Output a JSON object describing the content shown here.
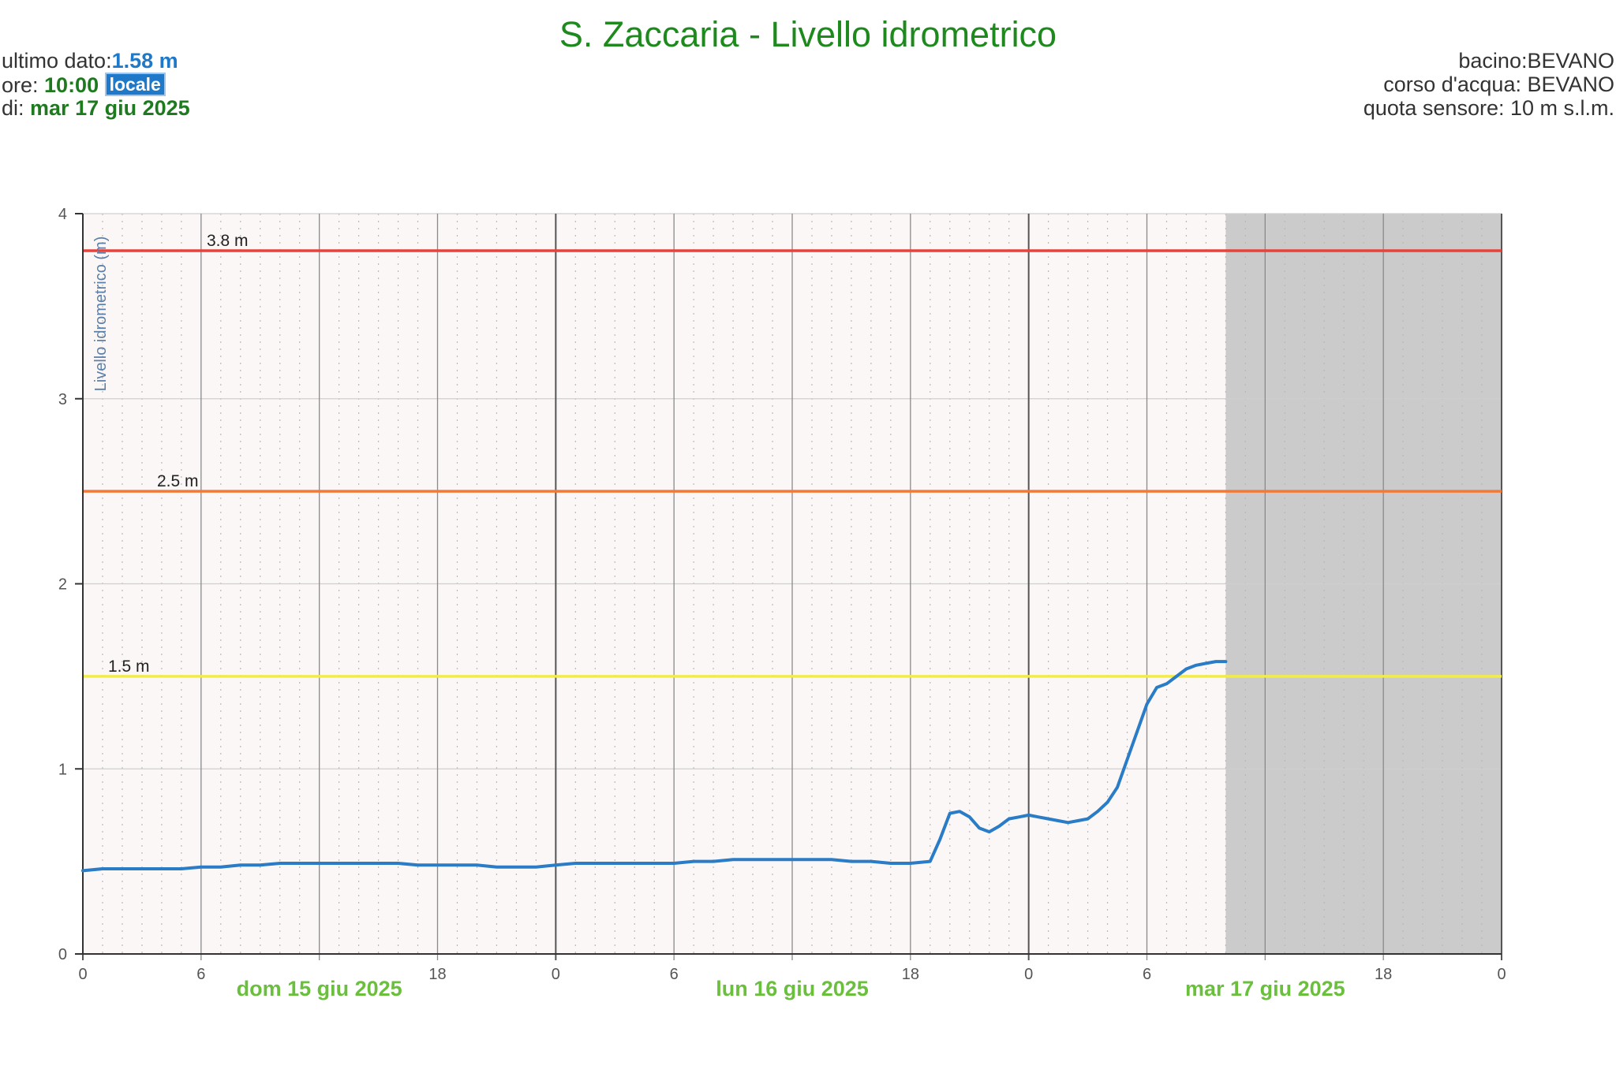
{
  "title": "S. Zaccaria - Livello idrometrico",
  "info": {
    "last_label": "ultimo dato:",
    "last_value": "1.58 m",
    "time_label": "ore: ",
    "time_value": "10:00",
    "time_badge": "locale",
    "date_label": "di: ",
    "date_value": "mar 17 giu 2025",
    "basin": "bacino:BEVANO",
    "river": "corso d'acqua: BEVANO",
    "sensor": "quota sensore: 10 m s.l.m."
  },
  "chart_data": {
    "type": "line",
    "ylabel": "Livello idrometrico (m)",
    "ylim": [
      0,
      4
    ],
    "yticks": [
      "0",
      "1",
      "2",
      "3",
      "4"
    ],
    "x_unit": "hours since 2025-06-15 00:00",
    "xlim": [
      0,
      72
    ],
    "xticks": [
      {
        "x": 0,
        "label": "0"
      },
      {
        "x": 6,
        "label": "6"
      },
      {
        "x": 12,
        "label": ""
      },
      {
        "x": 18,
        "label": "18"
      },
      {
        "x": 24,
        "label": "0"
      },
      {
        "x": 30,
        "label": "6"
      },
      {
        "x": 36,
        "label": ""
      },
      {
        "x": 42,
        "label": "18"
      },
      {
        "x": 48,
        "label": "0"
      },
      {
        "x": 54,
        "label": "6"
      },
      {
        "x": 60,
        "label": ""
      },
      {
        "x": 66,
        "label": "18"
      },
      {
        "x": 72,
        "label": "0"
      }
    ],
    "days": [
      {
        "x": 12,
        "label": "dom 15 giu 2025"
      },
      {
        "x": 36,
        "label": "lun 16 giu 2025"
      },
      {
        "x": 60,
        "label": "mar 17 giu 2025"
      }
    ],
    "thresholds": [
      {
        "value": 3.8,
        "label": "3.8 m",
        "color": "#e8423a"
      },
      {
        "value": 2.5,
        "label": "2.5 m",
        "color": "#f07a3a"
      },
      {
        "value": 1.5,
        "label": "1.5 m",
        "color": "#f2ec4a"
      }
    ],
    "forecast_start": 58,
    "series": [
      {
        "color": "#2a7cc7",
        "x": [
          0,
          1,
          2,
          3,
          4,
          5,
          6,
          7,
          8,
          9,
          10,
          11,
          12,
          13,
          14,
          15,
          16,
          17,
          18,
          19,
          20,
          21,
          22,
          23,
          24,
          25,
          26,
          27,
          28,
          29,
          30,
          31,
          32,
          33,
          34,
          35,
          36,
          37,
          38,
          39,
          40,
          41,
          41.5,
          42,
          43,
          43.5,
          44,
          44.5,
          45,
          45.5,
          46,
          46.5,
          47,
          47.5,
          48,
          48.5,
          49,
          49.5,
          50,
          50.5,
          51,
          51.5,
          52,
          52.5,
          53,
          53.5,
          54,
          54.5,
          55,
          55.5,
          56,
          56.5,
          57,
          57.5,
          58
        ],
        "values": [
          0.45,
          0.46,
          0.46,
          0.46,
          0.46,
          0.46,
          0.47,
          0.47,
          0.48,
          0.48,
          0.49,
          0.49,
          0.49,
          0.49,
          0.49,
          0.49,
          0.49,
          0.48,
          0.48,
          0.48,
          0.48,
          0.47,
          0.47,
          0.47,
          0.48,
          0.49,
          0.49,
          0.49,
          0.49,
          0.49,
          0.49,
          0.5,
          0.5,
          0.51,
          0.51,
          0.51,
          0.51,
          0.51,
          0.51,
          0.5,
          0.5,
          0.49,
          0.49,
          0.49,
          0.5,
          0.62,
          0.76,
          0.77,
          0.74,
          0.68,
          0.66,
          0.69,
          0.73,
          0.74,
          0.75,
          0.74,
          0.73,
          0.72,
          0.71,
          0.72,
          0.73,
          0.77,
          0.82,
          0.9,
          1.05,
          1.2,
          1.35,
          1.44,
          1.46,
          1.5,
          1.54,
          1.56,
          1.57,
          1.58,
          1.58
        ]
      }
    ]
  }
}
